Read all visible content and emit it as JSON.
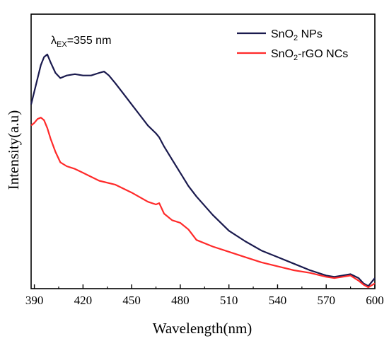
{
  "chart_data": {
    "type": "line",
    "xlabel": "Wavelength(nm)",
    "ylabel": "Intensity(a.u)",
    "xlim": [
      388,
      600
    ],
    "ylim": [
      0,
      100
    ],
    "x_ticks": [
      390,
      420,
      450,
      480,
      510,
      540,
      570,
      600
    ],
    "y_ticks_shown": false,
    "grid": false,
    "legend_position": "top-right",
    "annotation": {
      "symbol": "λ",
      "subscript": "EX",
      "text": "=355 nm"
    },
    "series": [
      {
        "name": "SnO2 NPs",
        "name_parts": [
          "SnO",
          "2",
          " NPs"
        ],
        "color": "#1a1a4e",
        "x": [
          388,
          390,
          392,
          394,
          396,
          398,
          400,
          403,
          406,
          410,
          415,
          420,
          425,
          430,
          433,
          436,
          440,
          445,
          450,
          455,
          460,
          465,
          467,
          470,
          475,
          480,
          485,
          490,
          500,
          510,
          520,
          530,
          540,
          550,
          560,
          570,
          575,
          580,
          585,
          590,
          593,
          596,
          600
        ],
        "y": [
          70,
          75,
          80,
          85,
          88,
          89,
          86,
          82,
          80,
          81,
          81.5,
          81,
          81,
          82,
          82.5,
          81,
          78,
          74,
          70,
          66,
          62,
          59,
          57.5,
          54,
          49,
          44,
          39,
          35,
          28,
          22,
          18,
          14.5,
          12,
          9.5,
          7,
          5,
          4.5,
          5,
          5.5,
          4,
          2,
          1,
          4
        ]
      },
      {
        "name": "SnO2-rGO NCs",
        "name_parts": [
          "SnO",
          "2",
          "-rGO NCs"
        ],
        "color": "#ff2a2a",
        "x": [
          388,
          390,
          392,
          394,
          396,
          398,
          400,
          403,
          406,
          410,
          415,
          420,
          425,
          430,
          440,
          450,
          460,
          465,
          467,
          470,
          475,
          480,
          485,
          490,
          500,
          510,
          520,
          530,
          540,
          550,
          560,
          570,
          575,
          580,
          585,
          590,
          593,
          596,
          600
        ],
        "y": [
          62,
          63,
          64.5,
          65,
          64,
          61,
          57,
          52,
          48,
          46.5,
          45.5,
          44,
          42.5,
          41,
          39.5,
          36.5,
          33,
          32,
          32.5,
          28.5,
          26,
          25,
          22.5,
          18.5,
          16,
          14,
          12,
          10,
          8.5,
          7,
          6,
          4.5,
          4,
          4.5,
          5,
          3,
          1.5,
          0.5,
          2
        ]
      }
    ]
  }
}
